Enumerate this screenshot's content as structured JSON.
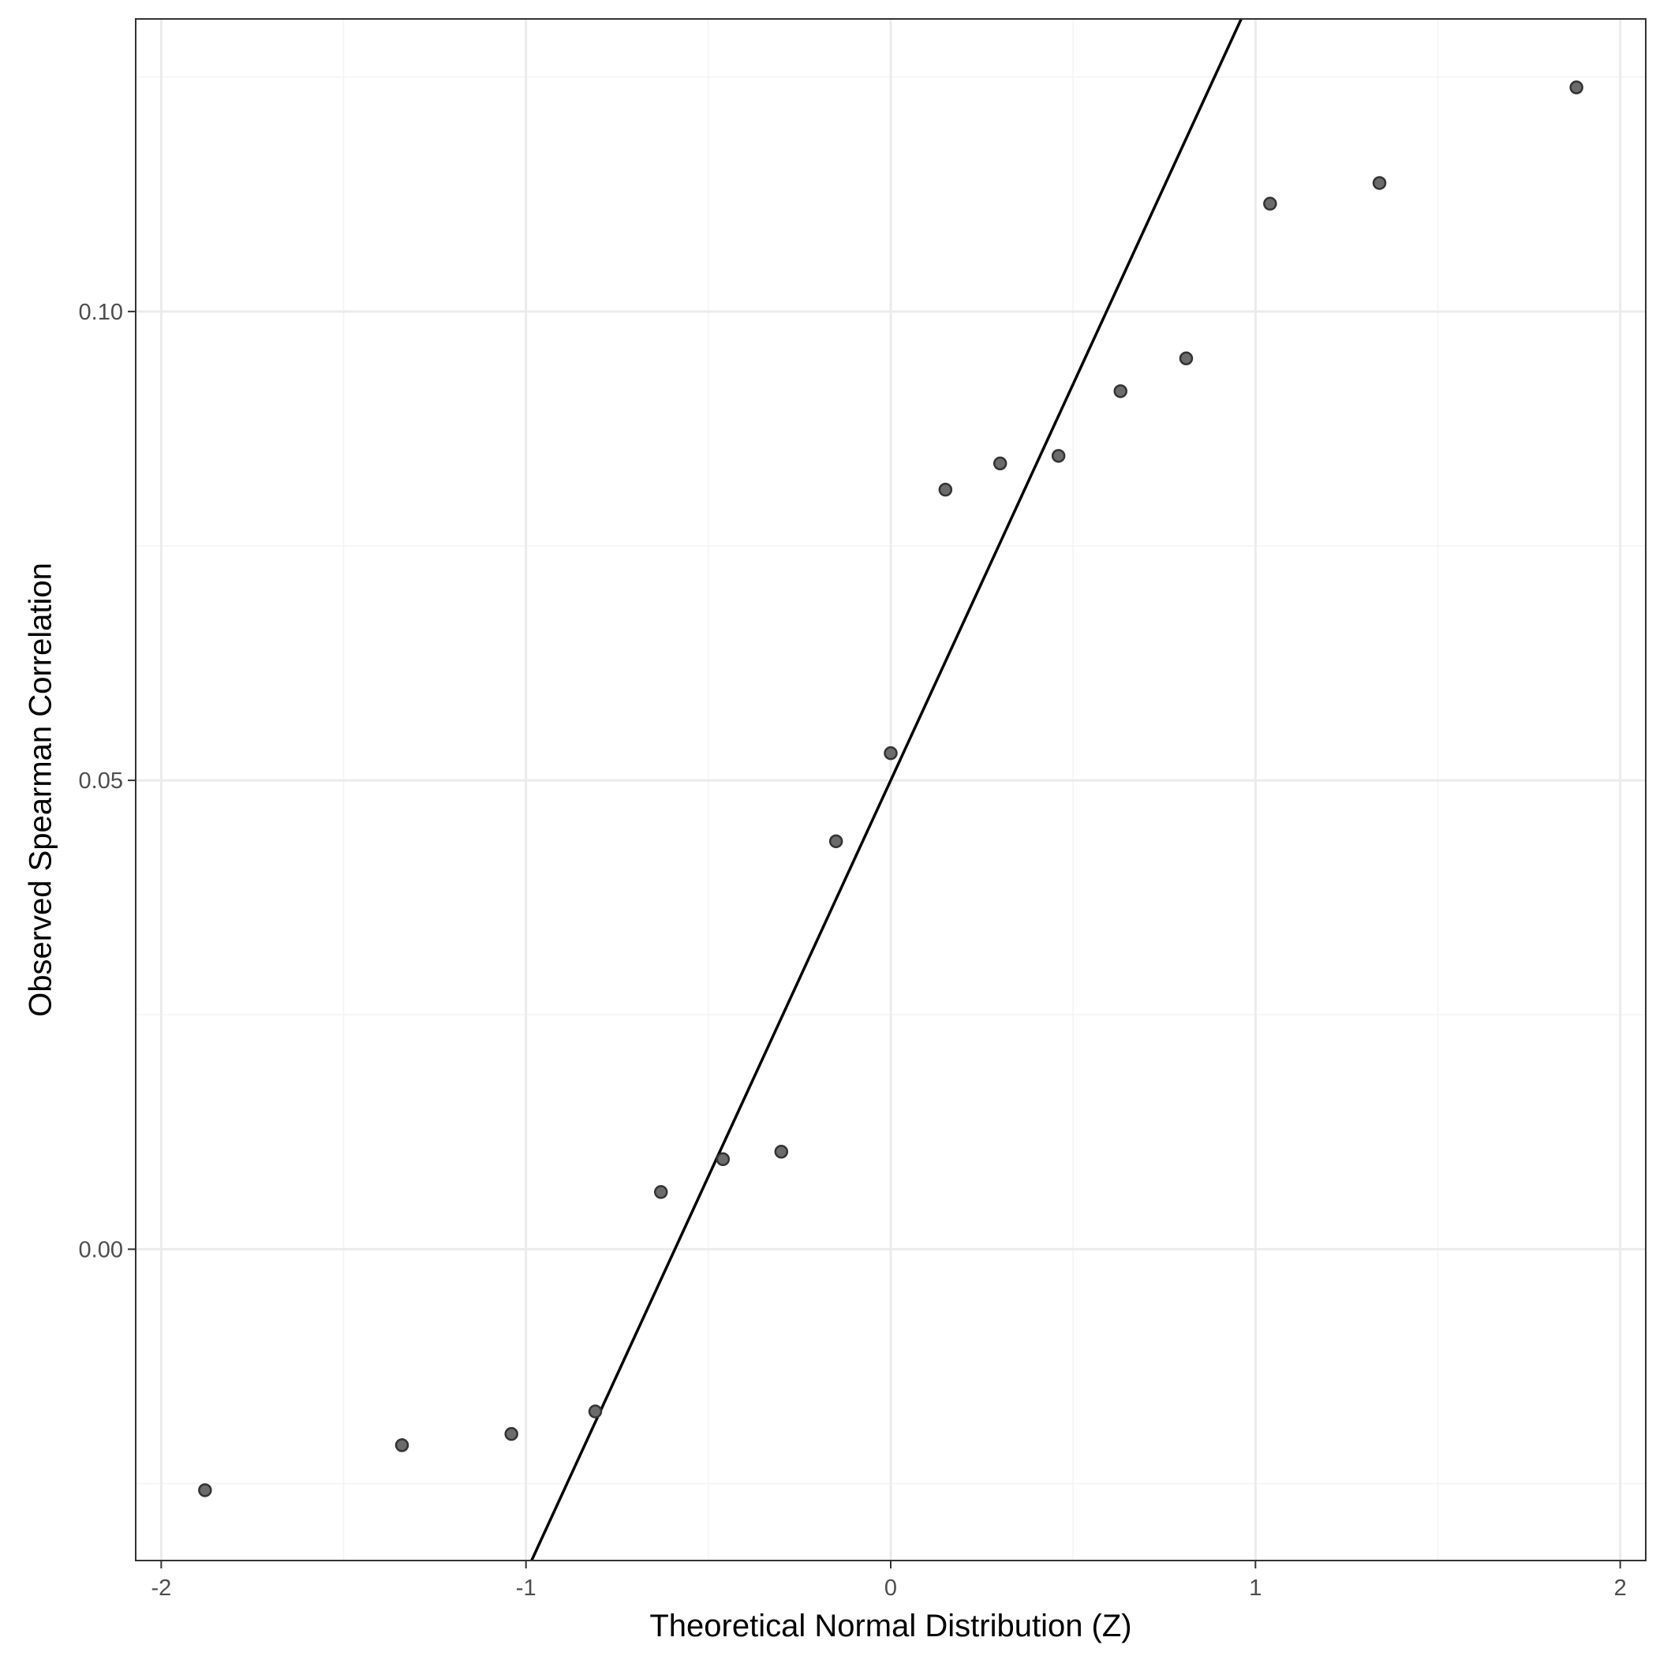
{
  "chart_data": {
    "type": "scatter",
    "title": "",
    "xlabel": "Theoretical Normal Distribution (Z)",
    "ylabel": "Observed Spearman Correlation",
    "xlim": [
      -2.07,
      2.07
    ],
    "ylim": [
      -0.0332,
      0.1312
    ],
    "x_ticks": [
      -2,
      -1,
      0,
      1,
      2
    ],
    "x_tick_labels": [
      "-2",
      "-1",
      "0",
      "1",
      "2"
    ],
    "y_ticks": [
      0.0,
      0.05,
      0.1
    ],
    "y_tick_labels": [
      "0.00",
      "0.05",
      "0.10"
    ],
    "x_minor_ticks": [
      -1.5,
      -0.5,
      0.5,
      1.5
    ],
    "y_minor_ticks": [
      -0.025,
      0.025,
      0.075,
      0.125
    ],
    "grid": true,
    "reference_line": {
      "intercept": 0.05,
      "slope": 0.0845
    },
    "series": [
      {
        "points": [
          {
            "x": -1.88,
            "y": -0.0257
          },
          {
            "x": -1.34,
            "y": -0.0209
          },
          {
            "x": -1.04,
            "y": -0.0197
          },
          {
            "x": -0.81,
            "y": -0.0173
          },
          {
            "x": -0.63,
            "y": 0.0061
          },
          {
            "x": -0.46,
            "y": 0.0096
          },
          {
            "x": -0.3,
            "y": 0.0104
          },
          {
            "x": -0.15,
            "y": 0.0435
          },
          {
            "x": 0.0,
            "y": 0.0529
          },
          {
            "x": 0.15,
            "y": 0.081
          },
          {
            "x": 0.3,
            "y": 0.0838
          },
          {
            "x": 0.46,
            "y": 0.0846
          },
          {
            "x": 0.63,
            "y": 0.0915
          },
          {
            "x": 0.81,
            "y": 0.095
          },
          {
            "x": 1.04,
            "y": 0.1115
          },
          {
            "x": 1.34,
            "y": 0.1137
          },
          {
            "x": 1.88,
            "y": 0.1239
          }
        ],
        "color": "#555555"
      }
    ],
    "colors": {
      "panel_border": "#333333",
      "grid_major": "#ebebeb",
      "grid_minor": "#f3f3f3",
      "reference_line": "#000000",
      "point_fill": "#6b6b6b",
      "point_stroke": "#333333"
    }
  }
}
